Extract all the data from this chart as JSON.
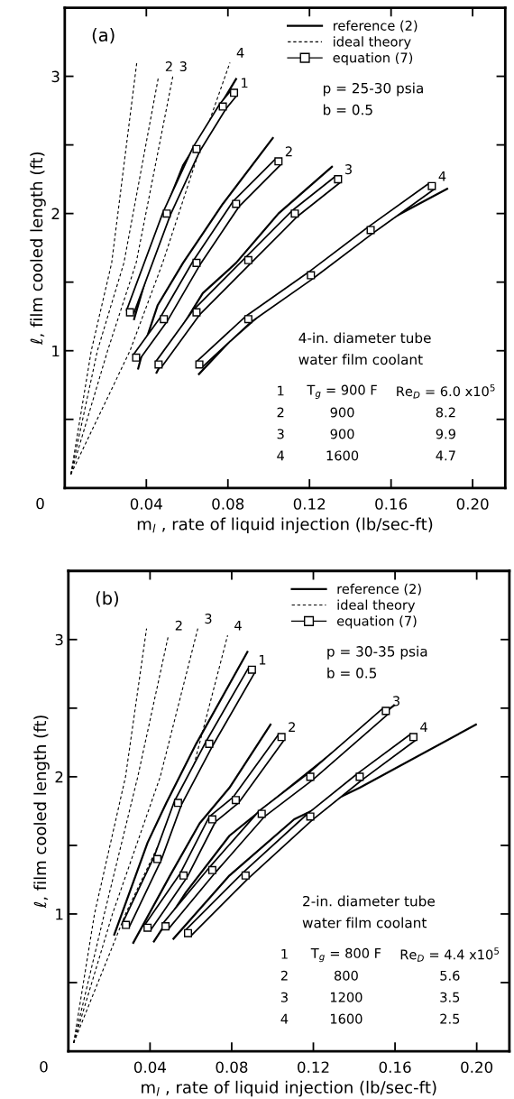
{
  "chart_data": [
    {
      "type": "line",
      "xlabel": "m$_{l}$ , rate of liquid injection (lb/sec-ft)",
      "ylabel": "ℓ, film cooled length (ft)",
      "xlim": [
        0,
        0.216
      ],
      "ylim": [
        0,
        3.5
      ],
      "xticks": [
        0.04,
        0.08,
        0.12,
        0.16,
        {
          "value": 0.2,
          "label": "0.20"
        }
      ],
      "yticks": [
        {
          "value": 0.5,
          "label": null
        },
        1,
        {
          "value": 1.5,
          "label": null
        },
        2,
        {
          "value": 2.5,
          "label": null
        },
        3
      ],
      "legend": "top right",
      "grid": false,
      "annotations": [
        "0",
        "(a)",
        "p = 25-30 psia",
        "b = 0.5",
        "4-in. diameter tube",
        "water film coolant",
        "1",
        "T$_{g}$ = 900 F",
        "Re$_{D}$ = 6.0 x10$^{5}$",
        "2",
        "900",
        "8.2",
        "3",
        "900",
        "9.9",
        "4",
        "1600",
        "4.7",
        {
          "text": "1",
          "x": 0.083,
          "y": 2.88
        },
        {
          "text": "2",
          "x": 0.1048,
          "y": 2.38
        },
        {
          "text": "3",
          "x": 0.134,
          "y": 2.25
        },
        {
          "text": "4",
          "x": 0.18,
          "y": 2.2
        },
        {
          "text": "2",
          "x": 0.046,
          "y": 3.0
        },
        {
          "text": "3",
          "x": 0.053,
          "y": 3.0
        },
        {
          "text": "4",
          "x": 0.081,
          "y": 3.1
        }
      ],
      "series": [
        {
          "name": "reference (2)",
          "color": "#000000",
          "line_style": "solid",
          "x": [
            0.034,
            0.042,
            0.0486,
            0.058,
            0.071,
            0.084
          ],
          "values": [
            1.23,
            1.64,
            2.0,
            2.35,
            2.66,
            2.98
          ]
        },
        {
          "color": "#000000",
          "line_style": "solid",
          "x": [
            0.036,
            0.039,
            0.0455,
            0.058,
            0.0775,
            0.102
          ],
          "values": [
            0.87,
            1.04,
            1.33,
            1.64,
            2.07,
            2.55
          ]
        },
        {
          "color": "#000000",
          "line_style": "solid",
          "x": [
            0.045,
            0.0548,
            0.0677,
            0.084,
            0.1048,
            0.131
          ],
          "values": [
            0.84,
            1.11,
            1.42,
            1.64,
            2.0,
            2.34
          ]
        },
        {
          "color": "#000000",
          "line_style": "solid",
          "x": [
            0.0658,
            0.081,
            0.1048,
            0.129,
            0.161,
            0.1875
          ],
          "values": [
            0.83,
            1.07,
            1.38,
            1.64,
            1.97,
            2.18
          ]
        },
        {
          "name": "ideal theory",
          "color": "#000000",
          "line_style": "dashed",
          "x": [
            0.003,
            0.013,
            0.023,
            0.0354
          ],
          "values": [
            0.1,
            1.0,
            1.64,
            3.11
          ]
        },
        {
          "color": "#000000",
          "line_style": "dashed",
          "x": [
            0.003,
            0.016,
            0.029,
            0.046
          ],
          "values": [
            0.1,
            1.0,
            1.64,
            3.0
          ]
        },
        {
          "color": "#000000",
          "line_style": "dashed",
          "x": [
            0.003,
            0.021,
            0.035,
            0.053
          ],
          "values": [
            0.1,
            1.0,
            1.64,
            3.0
          ]
        },
        {
          "color": "#000000",
          "line_style": "dashed",
          "x": [
            0.003,
            0.032,
            0.048,
            0.068,
            0.081
          ],
          "values": [
            0.1,
            1.0,
            1.64,
            2.55,
            3.1
          ]
        },
        {
          "name": "equation (7)",
          "color": "#000000",
          "line_style": "solid",
          "marker": "square",
          "x": [
            0.032,
            0.05,
            0.0646,
            0.0775,
            0.083
          ],
          "values": [
            1.28,
            2.0,
            2.47,
            2.78,
            2.88
          ]
        },
        {
          "color": "#000000",
          "line_style": "solid",
          "marker": "square",
          "x": [
            0.035,
            0.0486,
            0.0646,
            0.084,
            0.1048
          ],
          "values": [
            0.95,
            1.23,
            1.64,
            2.07,
            2.38
          ]
        },
        {
          "color": "#000000",
          "line_style": "solid",
          "marker": "square",
          "x": [
            0.046,
            0.0646,
            0.09,
            0.1128,
            0.134
          ],
          "values": [
            0.9,
            1.28,
            1.66,
            2.0,
            2.25
          ]
        },
        {
          "color": "#000000",
          "line_style": "solid",
          "marker": "square",
          "x": [
            0.066,
            0.09,
            0.1207,
            0.15,
            0.18
          ],
          "values": [
            0.9,
            1.23,
            1.55,
            1.88,
            2.2
          ]
        }
      ]
    },
    {
      "type": "line",
      "xlabel": "m$_{l}$ , rate of liquid injection (lb/sec-ft)",
      "ylabel": "ℓ, film cooled length (ft)",
      "xlim": [
        0,
        0.216
      ],
      "ylim": [
        0,
        3.5
      ],
      "xticks": [
        0.04,
        0.08,
        0.12,
        0.16,
        {
          "value": 0.2,
          "label": "0.20"
        }
      ],
      "yticks": [
        {
          "value": 0.5,
          "label": null
        },
        1,
        {
          "value": 1.5,
          "label": null
        },
        2,
        {
          "value": 2.5,
          "label": null
        },
        3
      ],
      "legend": "top right",
      "grid": false,
      "annotations": [
        "0",
        "(b)",
        "p = 30-35 psia",
        "b = 0.5",
        "2-in. diameter tube",
        "water film coolant",
        "1",
        "T$_{g}$ = 800 F",
        "Re$_{D}$ = 4.4 x10$^{5}$",
        "2",
        "800",
        "5.6",
        "3",
        "1200",
        "3.5",
        "4",
        "1600",
        "2.5",
        {
          "text": "1",
          "x": 0.0899,
          "y": 2.78
        },
        {
          "text": "2",
          "x": 0.1044,
          "y": 2.29
        },
        {
          "text": "3",
          "x": 0.1555,
          "y": 2.48
        },
        {
          "text": "4",
          "x": 0.169,
          "y": 2.29
        },
        {
          "text": "2",
          "x": 0.049,
          "y": 3.03
        },
        {
          "text": "3",
          "x": 0.0634,
          "y": 3.08
        },
        {
          "text": "4",
          "x": 0.078,
          "y": 3.03
        }
      ],
      "series": [
        {
          "name": "reference (2)",
          "color": "#000000",
          "line_style": "solid",
          "x": [
            0.0225,
            0.0388,
            0.048,
            0.0626,
            0.0877
          ],
          "values": [
            0.85,
            1.52,
            1.81,
            2.24,
            2.91
          ]
        },
        {
          "color": "#000000",
          "line_style": "solid",
          "x": [
            0.0318,
            0.0498,
            0.0643,
            0.0789,
            0.099
          ],
          "values": [
            0.79,
            1.28,
            1.66,
            1.92,
            2.38
          ]
        },
        {
          "color": "#000000",
          "line_style": "solid",
          "x": [
            0.0419,
            0.0577,
            0.0789,
            0.1106,
            0.1348,
            0.1595
          ],
          "values": [
            0.8,
            1.16,
            1.57,
            1.95,
            2.24,
            2.52
          ]
        },
        {
          "color": "#000000",
          "line_style": "solid",
          "x": [
            0.0515,
            0.0789,
            0.1106,
            0.1427,
            0.1996
          ],
          "values": [
            0.82,
            1.28,
            1.69,
            1.92,
            2.38
          ]
        },
        {
          "name": "ideal theory",
          "color": "#000000",
          "line_style": "dashed",
          "x": [
            0.0026,
            0.0128,
            0.028,
            0.0383
          ],
          "values": [
            0.06,
            1.0,
            2.0,
            3.08
          ]
        },
        {
          "color": "#000000",
          "line_style": "dashed",
          "x": [
            0.0026,
            0.0176,
            0.034,
            0.049
          ],
          "values": [
            0.06,
            1.0,
            2.0,
            3.03
          ]
        },
        {
          "color": "#000000",
          "line_style": "dashed",
          "x": [
            0.0026,
            0.0216,
            0.045,
            0.0634
          ],
          "values": [
            0.06,
            1.0,
            2.0,
            3.08
          ]
        },
        {
          "color": "#000000",
          "line_style": "dashed",
          "x": [
            0.0026,
            0.028,
            0.06,
            0.078
          ],
          "values": [
            0.06,
            1.0,
            2.0,
            3.03
          ]
        },
        {
          "name": "equation (7)",
          "color": "#000000",
          "line_style": "solid",
          "marker": "square",
          "x": [
            0.0282,
            0.0436,
            0.0537,
            0.069,
            0.0899
          ],
          "values": [
            0.92,
            1.4,
            1.81,
            2.24,
            2.78
          ]
        },
        {
          "color": "#000000",
          "line_style": "solid",
          "marker": "square",
          "x": [
            0.0388,
            0.0564,
            0.0705,
            0.082,
            0.1044
          ],
          "values": [
            0.9,
            1.28,
            1.69,
            1.83,
            2.29
          ]
        },
        {
          "color": "#000000",
          "line_style": "solid",
          "marker": "square",
          "x": [
            0.0476,
            0.0705,
            0.0947,
            0.1185,
            0.1555
          ],
          "values": [
            0.91,
            1.32,
            1.73,
            2.0,
            2.48
          ]
        },
        {
          "color": "#000000",
          "line_style": "solid",
          "marker": "square",
          "x": [
            0.0586,
            0.0868,
            0.1185,
            0.1427,
            0.169
          ],
          "values": [
            0.86,
            1.28,
            1.71,
            2.0,
            2.29
          ]
        }
      ]
    }
  ]
}
